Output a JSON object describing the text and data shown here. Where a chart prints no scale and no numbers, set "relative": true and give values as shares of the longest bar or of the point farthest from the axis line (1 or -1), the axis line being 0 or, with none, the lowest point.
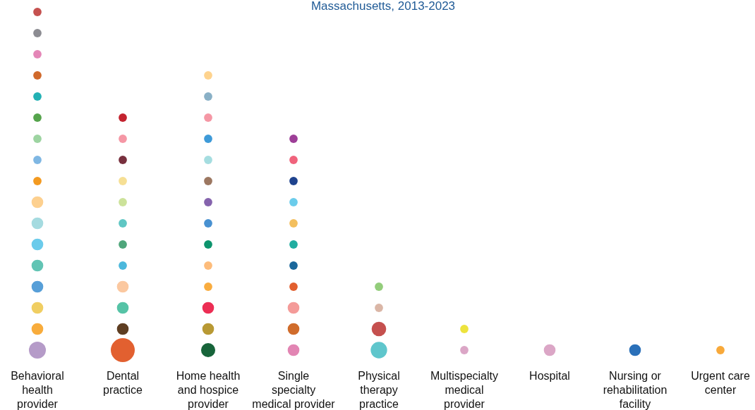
{
  "chart_data": {
    "type": "bubble",
    "subtitle": "Massachusetts, 2013-2023",
    "relative": true,
    "categories": [
      "Behavioral\nhealth\nprovider",
      "Dental\npractice",
      "Home health\nand hospice\nprovider",
      "Single\nspecialty\nmedical provider",
      "Physical\ntherapy\npractice",
      "Multispecialty\nmedical\nprovider",
      "Hospital",
      "Nursing or\nrehabilitation\nfacility",
      "Urgent care\ncenter"
    ],
    "series": [
      {
        "x": [
          "Behavioral\nhealth\nprovider",
          "Behavioral\nhealth\nprovider",
          "Behavioral\nhealth\nprovider",
          "Behavioral\nhealth\nprovider",
          "Behavioral\nhealth\nprovider",
          "Behavioral\nhealth\nprovider",
          "Behavioral\nhealth\nprovider",
          "Behavioral\nhealth\nprovider",
          "Behavioral\nhealth\nprovider",
          "Behavioral\nhealth\nprovider",
          "Behavioral\nhealth\nprovider",
          "Behavioral\nhealth\nprovider",
          "Behavioral\nhealth\nprovider",
          "Behavioral\nhealth\nprovider",
          "Behavioral\nhealth\nprovider",
          "Behavioral\nhealth\nprovider",
          "Behavioral\nhealth\nprovider"
        ],
        "values": [
          0,
          0.0625,
          0.125,
          0.1875,
          0.25,
          0.3125,
          0.375,
          0.4375,
          0.5,
          0.5625,
          0.625,
          0.6875,
          0.75,
          0.8125,
          0.875,
          0.9375,
          1
        ],
        "sizes": [
          0.5,
          0.24,
          0.24,
          0.24,
          0.24,
          0.24,
          0.24,
          0.24,
          0.12,
          0.12,
          0.12,
          0.12,
          0.12,
          0.12,
          0.12,
          0.12,
          0.12
        ],
        "colors": [
          "#b59bc8",
          "#f8ac3c",
          "#f0ce62",
          "#579fd8",
          "#62c4b4",
          "#6bcbeb",
          "#a5dbe0",
          "#fdd08f",
          "#f39a20",
          "#7fb7e3",
          "#9dd4a1",
          "#55a44c",
          "#22b1b4",
          "#d0692b",
          "#e486b7",
          "#8c8c92",
          "#c5514f"
        ]
      },
      {
        "x": [
          "Dental\npractice",
          "Dental\npractice",
          "Dental\npractice",
          "Dental\npractice",
          "Dental\npractice",
          "Dental\npractice",
          "Dental\npractice",
          "Dental\npractice",
          "Dental\npractice",
          "Dental\npractice",
          "Dental\npractice",
          "Dental\npractice"
        ],
        "values": [
          0,
          0.0625,
          0.125,
          0.1875,
          0.25,
          0.3125,
          0.375,
          0.4375,
          0.5,
          0.5625,
          0.625,
          0.6875
        ],
        "sizes": [
          1,
          0.24,
          0.24,
          0.24,
          0.12,
          0.12,
          0.12,
          0.12,
          0.12,
          0.12,
          0.12,
          0.12
        ],
        "colors": [
          "#e26030",
          "#5e3e22",
          "#56c3a6",
          "#fbc8a0",
          "#4cb8dc",
          "#4fa67b",
          "#5fc6c3",
          "#cce29a",
          "#f6df94",
          "#78303e",
          "#f597a5",
          "#c3232f"
        ]
      },
      {
        "x": [
          "Home health\nand hospice\nprovider",
          "Home health\nand hospice\nprovider",
          "Home health\nand hospice\nprovider",
          "Home health\nand hospice\nprovider",
          "Home health\nand hospice\nprovider",
          "Home health\nand hospice\nprovider",
          "Home health\nand hospice\nprovider",
          "Home health\nand hospice\nprovider",
          "Home health\nand hospice\nprovider",
          "Home health\nand hospice\nprovider",
          "Home health\nand hospice\nprovider",
          "Home health\nand hospice\nprovider",
          "Home health\nand hospice\nprovider",
          "Home health\nand hospice\nprovider"
        ],
        "values": [
          0,
          0.0625,
          0.125,
          0.1875,
          0.25,
          0.3125,
          0.375,
          0.4375,
          0.5,
          0.5625,
          0.625,
          0.6875,
          0.75,
          0.8125
        ],
        "sizes": [
          0.35,
          0.24,
          0.24,
          0.12,
          0.12,
          0.12,
          0.12,
          0.12,
          0.12,
          0.12,
          0.12,
          0.12,
          0.12,
          0.12
        ],
        "colors": [
          "#17643a",
          "#b89934",
          "#ec2e54",
          "#f9ac3f",
          "#fdbc7b",
          "#0d946d",
          "#4891d1",
          "#8563ad",
          "#9c7761",
          "#a5dde0",
          "#3e9ad8",
          "#f597a5",
          "#89b0c6",
          "#fed38e"
        ]
      },
      {
        "x": [
          "Single\nspecialty\nmedical provider",
          "Single\nspecialty\nmedical provider",
          "Single\nspecialty\nmedical provider",
          "Single\nspecialty\nmedical provider",
          "Single\nspecialty\nmedical provider",
          "Single\nspecialty\nmedical provider",
          "Single\nspecialty\nmedical provider",
          "Single\nspecialty\nmedical provider",
          "Single\nspecialty\nmedical provider",
          "Single\nspecialty\nmedical provider",
          "Single\nspecialty\nmedical provider"
        ],
        "values": [
          0,
          0.0625,
          0.125,
          0.1875,
          0.25,
          0.3125,
          0.375,
          0.4375,
          0.5,
          0.5625,
          0.625
        ],
        "sizes": [
          0.24,
          0.24,
          0.24,
          0.12,
          0.12,
          0.12,
          0.12,
          0.12,
          0.12,
          0.12,
          0.12
        ],
        "colors": [
          "#e285b3",
          "#d06c2b",
          "#f49b99",
          "#e25f2e",
          "#1a679b",
          "#20ada0",
          "#f3bf5e",
          "#6bcceb",
          "#1f438e",
          "#f0637c",
          "#9d3e97"
        ]
      },
      {
        "x": [
          "Physical\ntherapy\npractice",
          "Physical\ntherapy\npractice",
          "Physical\ntherapy\npractice",
          "Physical\ntherapy\npractice"
        ],
        "values": [
          0,
          0.0625,
          0.125,
          0.1875
        ],
        "sizes": [
          0.47,
          0.37,
          0.12,
          0.12
        ],
        "colors": [
          "#5fc6cc",
          "#c5504e",
          "#dab6a6",
          "#93cd7b"
        ]
      },
      {
        "x": [
          "Multispecialty\nmedical\nprovider",
          "Multispecialty\nmedical\nprovider"
        ],
        "values": [
          0,
          0.0625
        ],
        "sizes": [
          0.12,
          0.12
        ],
        "colors": [
          "#dba6c6",
          "#ede33d"
        ]
      },
      {
        "x": [
          "Hospital"
        ],
        "values": [
          0
        ],
        "sizes": [
          0.24
        ],
        "colors": [
          "#dba6c6"
        ]
      },
      {
        "x": [
          "Nursing or\nrehabilitation\nfacility"
        ],
        "values": [
          0
        ],
        "sizes": [
          0.24
        ],
        "colors": [
          "#2a70b9"
        ]
      },
      {
        "x": [
          "Urgent care\ncenter"
        ],
        "values": [
          0
        ],
        "sizes": [
          0.12
        ],
        "colors": [
          "#f8a93a"
        ]
      }
    ]
  }
}
